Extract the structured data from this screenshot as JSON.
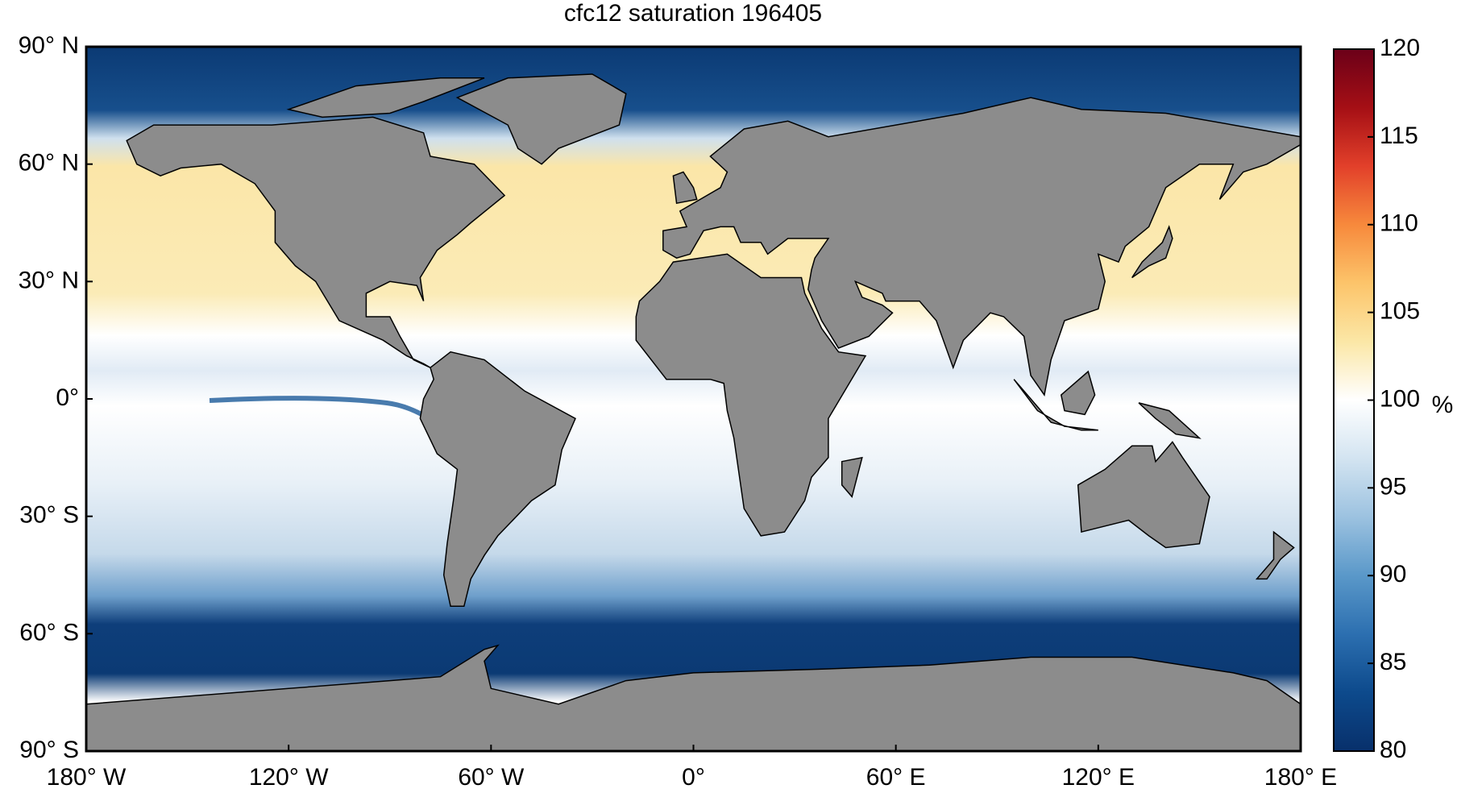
{
  "chart_data": {
    "type": "map",
    "title": "cfc12 saturation 196405",
    "xlim": [
      -180,
      180
    ],
    "ylim": [
      -90,
      90
    ],
    "xticks": [
      {
        "value": -180,
        "label": "180° W"
      },
      {
        "value": -120,
        "label": "120° W"
      },
      {
        "value": -60,
        "label": "60° W"
      },
      {
        "value": 0,
        "label": "0°"
      },
      {
        "value": 60,
        "label": "60° E"
      },
      {
        "value": 120,
        "label": "120° E"
      },
      {
        "value": 180,
        "label": "180° E"
      }
    ],
    "yticks": [
      {
        "value": 90,
        "label": "90° N"
      },
      {
        "value": 60,
        "label": "60° N"
      },
      {
        "value": 30,
        "label": "30° N"
      },
      {
        "value": 0,
        "label": "0°"
      },
      {
        "value": -30,
        "label": "30° S"
      },
      {
        "value": -60,
        "label": "60° S"
      },
      {
        "value": -90,
        "label": "90° S"
      }
    ],
    "land_color": "#8c8c8c",
    "colorbar": {
      "label": "%",
      "lim": [
        80,
        120
      ],
      "ticks": [
        80,
        85,
        90,
        95,
        100,
        105,
        110,
        115,
        120
      ],
      "colors": [
        "#08306b",
        "#0d4a8c",
        "#2c6fb0",
        "#5a98c9",
        "#9cc2e0",
        "#d3e4f1",
        "#ffffff",
        "#fbe7a6",
        "#fcc46a",
        "#f7893c",
        "#e2402a",
        "#a50f15",
        "#6b0018"
      ]
    }
  }
}
